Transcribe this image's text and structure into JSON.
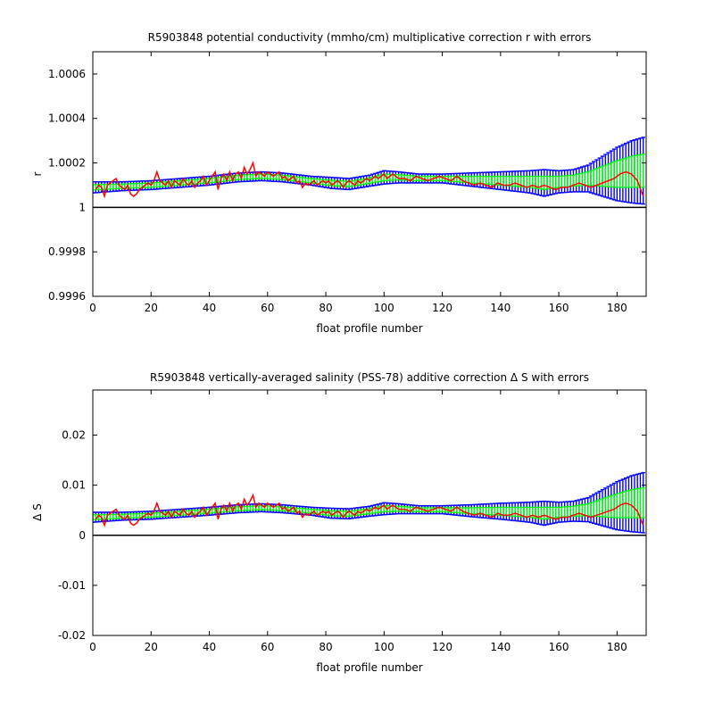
{
  "chart_data": [
    {
      "type": "line",
      "title": "R5903848 potential conductivity (mmho/cm) multiplicative correction r with errors",
      "xlabel": "float profile number",
      "ylabel": "r",
      "xlim": [
        0,
        190
      ],
      "ylim": [
        0.9996,
        1.0007
      ],
      "xticks": [
        0,
        20,
        40,
        60,
        80,
        100,
        120,
        140,
        160,
        180
      ],
      "xtick_labels": [
        "0",
        "20",
        "40",
        "60",
        "80",
        "100",
        "120",
        "140",
        "160",
        "180"
      ],
      "yticks": [
        0.9996,
        0.9998,
        1.0,
        1.0002,
        1.0004,
        1.0006
      ],
      "ytick_labels": [
        "0.9996",
        "0.9998",
        "1",
        "1.0002",
        "1.0004",
        "1.0006"
      ],
      "reference_line": 1.0,
      "colors": {
        "wide_error": "#0000ff",
        "narrow_error": "#00ff00",
        "correction": "#ff0000",
        "reference": "#000000"
      },
      "series": [
        {
          "kind": "error_band_wide",
          "x": [
            0,
            10,
            20,
            30,
            40,
            50,
            58,
            65,
            75,
            82,
            88,
            95,
            100,
            105,
            112,
            120,
            130,
            140,
            150,
            155,
            160,
            165,
            170,
            175,
            180,
            185,
            189
          ],
          "center": [
            1.00009,
            1.000095,
            1.0001,
            1.00011,
            1.00012,
            1.000135,
            1.00014,
            1.000135,
            1.00012,
            1.00011,
            1.000105,
            1.00012,
            1.000135,
            1.000135,
            1.00013,
            1.00013,
            1.000125,
            1.00012,
            1.000115,
            1.00011,
            1.000115,
            1.00012,
            1.00013,
            1.00014,
            1.00015,
            1.00016,
            1.000165
          ],
          "err": [
            2.5e-05,
            2e-05,
            2e-05,
            2e-05,
            2e-05,
            2e-05,
            2e-05,
            2e-05,
            2e-05,
            2.5e-05,
            2.5e-05,
            2.5e-05,
            3e-05,
            2.5e-05,
            2e-05,
            2e-05,
            3e-05,
            4e-05,
            5e-05,
            6e-05,
            5e-05,
            5e-05,
            6e-05,
            9e-05,
            0.00012,
            0.00014,
            0.00015
          ]
        },
        {
          "kind": "error_band_narrow",
          "x": [
            0,
            10,
            20,
            30,
            40,
            50,
            58,
            65,
            75,
            82,
            88,
            95,
            100,
            105,
            112,
            120,
            130,
            140,
            150,
            155,
            160,
            165,
            170,
            175,
            180,
            185,
            189
          ],
          "center": [
            1.00009,
            1.000095,
            1.0001,
            1.00011,
            1.00012,
            1.000135,
            1.00014,
            1.000135,
            1.00012,
            1.00011,
            1.000105,
            1.00012,
            1.000135,
            1.000135,
            1.00013,
            1.00013,
            1.000125,
            1.00012,
            1.000115,
            1.00011,
            1.000115,
            1.00012,
            1.00013,
            1.00014,
            1.00015,
            1.00016,
            1.000165
          ],
          "err": [
            1.2e-05,
            1e-05,
            1e-05,
            1e-05,
            1e-05,
            1e-05,
            1e-05,
            1e-05,
            1e-05,
            1.2e-05,
            1.2e-05,
            1.2e-05,
            1.5e-05,
            1.2e-05,
            1e-05,
            1e-05,
            1.5e-05,
            2e-05,
            2.5e-05,
            3e-05,
            2.5e-05,
            2.5e-05,
            3e-05,
            4.5e-05,
            6e-05,
            7e-05,
            7.5e-05
          ]
        },
        {
          "kind": "correction",
          "x": [
            1,
            2,
            3,
            4,
            5,
            6,
            7,
            8,
            9,
            10,
            11,
            12,
            13,
            14,
            15,
            16,
            17,
            18,
            19,
            20,
            21,
            22,
            23,
            24,
            25,
            26,
            27,
            28,
            29,
            30,
            31,
            32,
            33,
            34,
            35,
            36,
            37,
            38,
            39,
            40,
            41,
            42,
            43,
            44,
            45,
            46,
            47,
            48,
            49,
            50,
            51,
            52,
            53,
            54,
            55,
            56,
            57,
            58,
            59,
            60,
            61,
            62,
            63,
            64,
            65,
            66,
            67,
            68,
            69,
            70,
            71,
            72,
            73,
            74,
            75,
            76,
            77,
            78,
            79,
            80,
            81,
            82,
            83,
            84,
            85,
            86,
            87,
            88,
            89,
            90,
            91,
            92,
            93,
            94,
            95,
            96,
            97,
            98,
            99,
            100,
            101,
            102,
            103,
            104,
            105,
            107,
            109,
            111,
            113,
            115,
            117,
            119,
            121,
            123,
            125,
            127,
            129,
            131,
            133,
            135,
            137,
            139,
            141,
            143,
            145,
            147,
            149,
            151,
            153,
            155,
            157,
            159,
            161,
            163,
            165,
            167,
            169,
            171,
            173,
            175,
            177,
            179,
            181,
            183,
            185,
            187,
            189
          ],
          "y": [
            1.00008,
            1.0001,
            1.00009,
            1.00005,
            1.0001,
            1.00011,
            1.00012,
            1.00013,
            1.0001,
            1.00009,
            1.00008,
            1.0001,
            1.00006,
            1.00005,
            1.00006,
            1.00008,
            1.00009,
            1.0001,
            1.00011,
            1.0001,
            1.00012,
            1.00016,
            1.00012,
            1.00011,
            1.0001,
            1.00012,
            1.00009,
            1.00012,
            1.00011,
            1.0001,
            1.00013,
            1.00011,
            1.0001,
            1.00012,
            1.00009,
            1.00011,
            1.00012,
            1.00014,
            1.0001,
            1.00012,
            1.00014,
            1.00016,
            1.00008,
            1.00013,
            1.00015,
            1.00012,
            1.00016,
            1.00012,
            1.00015,
            1.00016,
            1.00013,
            1.00018,
            1.00015,
            1.00017,
            1.0002,
            1.00014,
            1.00016,
            1.00015,
            1.00014,
            1.00016,
            1.00015,
            1.00014,
            1.00015,
            1.00016,
            1.00013,
            1.00014,
            1.00012,
            1.00013,
            1.00014,
            1.00011,
            1.00012,
            1.00009,
            1.00011,
            1.0001,
            1.00011,
            1.00012,
            1.0001,
            1.00011,
            1.00012,
            1.00011,
            1.00012,
            1.0001,
            1.00011,
            1.00012,
            1.00011,
            1.00009,
            1.00011,
            1.00012,
            1.00011,
            1.0001,
            1.00012,
            1.00011,
            1.00012,
            1.00013,
            1.00012,
            1.00013,
            1.00014,
            1.00013,
            1.00014,
            1.00015,
            1.00013,
            1.00014,
            1.00015,
            1.00014,
            1.00013,
            1.00013,
            1.00012,
            1.00014,
            1.00013,
            1.00012,
            1.00013,
            1.00014,
            1.00013,
            1.00012,
            1.00014,
            1.00012,
            1.00011,
            1.0001,
            1.00011,
            1.0001,
            1.00009,
            1.00011,
            1.0001,
            1.0001,
            1.00011,
            1.0001,
            1.00009,
            1.0001,
            1.00009,
            1.0001,
            1.00009,
            1.00008,
            1.00009,
            1.00009,
            1.0001,
            1.00011,
            1.0001,
            1.00009,
            1.0001,
            1.00011,
            1.00012,
            1.00013,
            1.00015,
            1.00016,
            1.00015,
            1.00012,
            1.00005
          ]
        }
      ]
    },
    {
      "type": "line",
      "title": "R5903848 vertically-averaged salinity (PSS-78) additive correction Δ S with errors",
      "xlabel": "float profile number",
      "ylabel": "Δ S",
      "xlim": [
        0,
        190
      ],
      "ylim": [
        -0.02,
        0.029
      ],
      "xticks": [
        0,
        20,
        40,
        60,
        80,
        100,
        120,
        140,
        160,
        180
      ],
      "xtick_labels": [
        "0",
        "20",
        "40",
        "60",
        "80",
        "100",
        "120",
        "140",
        "160",
        "180"
      ],
      "yticks": [
        -0.02,
        -0.01,
        0,
        0.01,
        0.02
      ],
      "ytick_labels": [
        "-0.02",
        "-0.01",
        "0",
        "0.01",
        "0.02"
      ],
      "reference_line": 0,
      "colors": {
        "wide_error": "#0000ff",
        "narrow_error": "#00ff00",
        "correction": "#ff0000",
        "reference": "#000000"
      },
      "series": [
        {
          "kind": "error_band_wide",
          "x": [
            0,
            10,
            20,
            30,
            40,
            50,
            58,
            65,
            75,
            82,
            88,
            95,
            100,
            105,
            112,
            120,
            130,
            140,
            150,
            155,
            160,
            165,
            170,
            175,
            180,
            185,
            189
          ],
          "center": [
            0.0036,
            0.0038,
            0.004,
            0.0044,
            0.0048,
            0.0053,
            0.0055,
            0.0053,
            0.0048,
            0.0044,
            0.0043,
            0.0048,
            0.0053,
            0.0053,
            0.0051,
            0.0051,
            0.0049,
            0.0048,
            0.0046,
            0.0044,
            0.0046,
            0.0048,
            0.0051,
            0.0055,
            0.0059,
            0.0063,
            0.0065
          ],
          "err": [
            0.001,
            0.0008,
            0.0008,
            0.0008,
            0.0008,
            0.0008,
            0.0008,
            0.0008,
            0.0008,
            0.001,
            0.001,
            0.001,
            0.0012,
            0.001,
            0.0008,
            0.0008,
            0.0012,
            0.0016,
            0.002,
            0.0024,
            0.002,
            0.002,
            0.0024,
            0.0036,
            0.0048,
            0.0056,
            0.006
          ]
        },
        {
          "kind": "error_band_narrow",
          "x": [
            0,
            10,
            20,
            30,
            40,
            50,
            58,
            65,
            75,
            82,
            88,
            95,
            100,
            105,
            112,
            120,
            130,
            140,
            150,
            155,
            160,
            165,
            170,
            175,
            180,
            185,
            189
          ],
          "center": [
            0.0036,
            0.0038,
            0.004,
            0.0044,
            0.0048,
            0.0053,
            0.0055,
            0.0053,
            0.0048,
            0.0044,
            0.0043,
            0.0048,
            0.0053,
            0.0053,
            0.0051,
            0.0051,
            0.0049,
            0.0048,
            0.0046,
            0.0044,
            0.0046,
            0.0048,
            0.0051,
            0.0055,
            0.0059,
            0.0063,
            0.0065
          ],
          "err": [
            0.0005,
            0.0004,
            0.0004,
            0.0004,
            0.0004,
            0.0004,
            0.0004,
            0.0004,
            0.0004,
            0.0005,
            0.0005,
            0.0005,
            0.0006,
            0.0005,
            0.0004,
            0.0004,
            0.0006,
            0.0008,
            0.001,
            0.0012,
            0.001,
            0.001,
            0.0012,
            0.0018,
            0.0024,
            0.0028,
            0.003
          ]
        },
        {
          "kind": "correction",
          "x": [
            1,
            2,
            3,
            4,
            5,
            6,
            7,
            8,
            9,
            10,
            11,
            12,
            13,
            14,
            15,
            16,
            17,
            18,
            19,
            20,
            21,
            22,
            23,
            24,
            25,
            26,
            27,
            28,
            29,
            30,
            31,
            32,
            33,
            34,
            35,
            36,
            37,
            38,
            39,
            40,
            41,
            42,
            43,
            44,
            45,
            46,
            47,
            48,
            49,
            50,
            51,
            52,
            53,
            54,
            55,
            56,
            57,
            58,
            59,
            60,
            61,
            62,
            63,
            64,
            65,
            66,
            67,
            68,
            69,
            70,
            71,
            72,
            73,
            74,
            75,
            76,
            77,
            78,
            79,
            80,
            81,
            82,
            83,
            84,
            85,
            86,
            87,
            88,
            89,
            90,
            91,
            92,
            93,
            94,
            95,
            96,
            97,
            98,
            99,
            100,
            101,
            102,
            103,
            104,
            105,
            107,
            109,
            111,
            113,
            115,
            117,
            119,
            121,
            123,
            125,
            127,
            129,
            131,
            133,
            135,
            137,
            139,
            141,
            143,
            145,
            147,
            149,
            151,
            153,
            155,
            157,
            159,
            161,
            163,
            165,
            167,
            169,
            171,
            173,
            175,
            177,
            179,
            181,
            183,
            185,
            187,
            189
          ],
          "y": [
            0.0032,
            0.004,
            0.0036,
            0.002,
            0.004,
            0.0044,
            0.0048,
            0.0052,
            0.004,
            0.0036,
            0.0032,
            0.004,
            0.0024,
            0.002,
            0.0024,
            0.0032,
            0.0036,
            0.004,
            0.0044,
            0.004,
            0.0048,
            0.0064,
            0.0048,
            0.0044,
            0.004,
            0.0048,
            0.0036,
            0.0048,
            0.0044,
            0.004,
            0.0052,
            0.0044,
            0.004,
            0.0048,
            0.0036,
            0.0044,
            0.0048,
            0.0056,
            0.004,
            0.0048,
            0.0056,
            0.0064,
            0.0032,
            0.0052,
            0.006,
            0.0048,
            0.0064,
            0.0048,
            0.006,
            0.0064,
            0.0052,
            0.0072,
            0.006,
            0.0068,
            0.008,
            0.0056,
            0.0064,
            0.006,
            0.0056,
            0.0064,
            0.006,
            0.0056,
            0.006,
            0.0064,
            0.0052,
            0.0056,
            0.0048,
            0.0052,
            0.0056,
            0.0044,
            0.0048,
            0.0036,
            0.0044,
            0.004,
            0.0044,
            0.0048,
            0.004,
            0.0044,
            0.0048,
            0.0044,
            0.0048,
            0.004,
            0.0044,
            0.0048,
            0.0044,
            0.0036,
            0.0044,
            0.0048,
            0.0044,
            0.004,
            0.0048,
            0.0044,
            0.0048,
            0.0052,
            0.0048,
            0.0052,
            0.0056,
            0.0052,
            0.0056,
            0.006,
            0.0052,
            0.0056,
            0.006,
            0.0056,
            0.0052,
            0.0052,
            0.0048,
            0.0056,
            0.0052,
            0.0048,
            0.0052,
            0.0056,
            0.0052,
            0.0048,
            0.0056,
            0.0048,
            0.0044,
            0.004,
            0.0044,
            0.004,
            0.0036,
            0.0044,
            0.004,
            0.004,
            0.0044,
            0.004,
            0.0036,
            0.004,
            0.0036,
            0.004,
            0.0036,
            0.0032,
            0.0036,
            0.0036,
            0.004,
            0.0044,
            0.004,
            0.0036,
            0.004,
            0.0044,
            0.0048,
            0.0052,
            0.006,
            0.0064,
            0.006,
            0.0048,
            0.002
          ]
        }
      ]
    }
  ]
}
